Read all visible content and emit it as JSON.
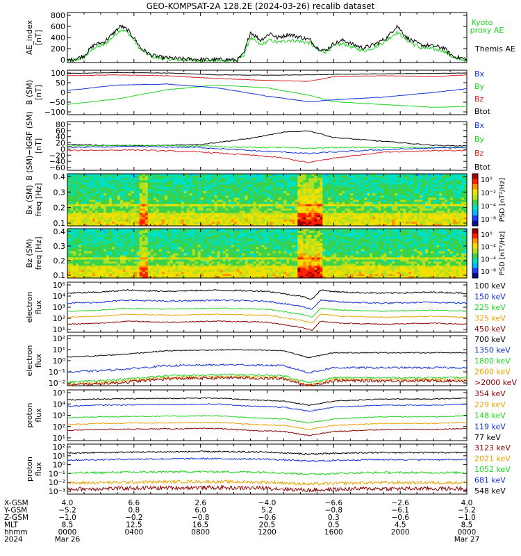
{
  "title": "GEO-KOMPSAT-2A 128.2E (2024-03-26) recalib dataset",
  "colors": {
    "black": "#000000",
    "green": "#1ed41e",
    "red": "#d42020",
    "blue": "#1030d8",
    "orange": "#f0a000",
    "darkred": "#8c0000"
  },
  "chart_data": [
    {
      "type": "line",
      "name": "ae",
      "ylabel": [
        "AE_index",
        "[nT]"
      ],
      "yticks": [
        "800",
        "600",
        "400",
        "200",
        "0"
      ],
      "series": [
        {
          "name": "Kyoto proxy AE",
          "color": "green"
        },
        {
          "name": "Themis AE",
          "color": "black"
        }
      ],
      "legend": [
        "Kyoto",
        "proxy AE",
        "Themis AE"
      ],
      "values": {
        "themis": [
          [
            0,
            40
          ],
          [
            0.5,
            60
          ],
          [
            1,
            120
          ],
          [
            1.6,
            300
          ],
          [
            2.2,
            350
          ],
          [
            2.6,
            450
          ],
          [
            3.2,
            620
          ],
          [
            3.6,
            560
          ],
          [
            4.0,
            420
          ],
          [
            4.4,
            250
          ],
          [
            5.0,
            130
          ],
          [
            5.6,
            90
          ],
          [
            6.4,
            70
          ],
          [
            7.5,
            55
          ],
          [
            8.5,
            50
          ],
          [
            9.5,
            50
          ],
          [
            10.2,
            45
          ],
          [
            10.6,
            150
          ],
          [
            11.0,
            520
          ],
          [
            11.6,
            380
          ],
          [
            12.2,
            500
          ],
          [
            12.6,
            420
          ],
          [
            13.3,
            480
          ],
          [
            14.0,
            430
          ],
          [
            14.6,
            380
          ],
          [
            15.0,
            250
          ],
          [
            15.5,
            200
          ],
          [
            16.0,
            320
          ],
          [
            16.6,
            380
          ],
          [
            17.2,
            300
          ],
          [
            17.8,
            250
          ],
          [
            18.4,
            300
          ],
          [
            19.2,
            420
          ],
          [
            19.8,
            630
          ],
          [
            20.4,
            420
          ],
          [
            21.2,
            300
          ],
          [
            22.0,
            280
          ],
          [
            22.6,
            250
          ],
          [
            23.2,
            100
          ],
          [
            24,
            60
          ]
        ],
        "kyoto": [
          [
            0,
            30
          ],
          [
            0.5,
            45
          ],
          [
            1,
            90
          ],
          [
            1.6,
            250
          ],
          [
            2.2,
            300
          ],
          [
            2.6,
            400
          ],
          [
            3.2,
            560
          ],
          [
            3.6,
            520
          ],
          [
            4.0,
            380
          ],
          [
            4.4,
            220
          ],
          [
            5.0,
            110
          ],
          [
            5.6,
            70
          ],
          [
            6.4,
            50
          ],
          [
            7.5,
            40
          ],
          [
            8.5,
            35
          ],
          [
            9.5,
            35
          ],
          [
            10.2,
            30
          ],
          [
            10.6,
            130
          ],
          [
            11.0,
            420
          ],
          [
            11.6,
            300
          ],
          [
            12.2,
            380
          ],
          [
            12.6,
            340
          ],
          [
            13.3,
            380
          ],
          [
            14.0,
            360
          ],
          [
            14.6,
            330
          ],
          [
            15.0,
            220
          ],
          [
            15.5,
            180
          ],
          [
            16.0,
            280
          ],
          [
            16.6,
            320
          ],
          [
            17.2,
            250
          ],
          [
            17.8,
            200
          ],
          [
            18.4,
            250
          ],
          [
            19.2,
            380
          ],
          [
            19.8,
            520
          ],
          [
            20.4,
            380
          ],
          [
            21.2,
            250
          ],
          [
            22.0,
            230
          ],
          [
            22.6,
            200
          ],
          [
            23.2,
            80
          ],
          [
            24,
            40
          ]
        ]
      }
    },
    {
      "type": "line",
      "name": "b-sm",
      "ylabel": [
        "B (SM)",
        "[nT]"
      ],
      "yticks": [
        "100",
        "50",
        "0",
        "−50",
        "−100"
      ],
      "series": [
        {
          "name": "Bx",
          "color": "blue"
        },
        {
          "name": "By",
          "color": "green"
        },
        {
          "name": "Bz",
          "color": "red"
        },
        {
          "name": "Btot",
          "color": "black"
        }
      ],
      "values": {
        "bx": [
          [
            0,
            15
          ],
          [
            3,
            45
          ],
          [
            6,
            50
          ],
          [
            9,
            30
          ],
          [
            12,
            -15
          ],
          [
            14.5,
            -45
          ],
          [
            16,
            -35
          ],
          [
            19,
            -20
          ],
          [
            22,
            5
          ],
          [
            24,
            25
          ]
        ],
        "by": [
          [
            0,
            -60
          ],
          [
            3,
            -30
          ],
          [
            6,
            20
          ],
          [
            9,
            45
          ],
          [
            12,
            30
          ],
          [
            14.5,
            -10
          ],
          [
            16,
            -45
          ],
          [
            19,
            -60
          ],
          [
            22,
            -75
          ],
          [
            24,
            -70
          ]
        ],
        "bz": [
          [
            0,
            95
          ],
          [
            3,
            100
          ],
          [
            6,
            95
          ],
          [
            9,
            80
          ],
          [
            12,
            70
          ],
          [
            14.5,
            65
          ],
          [
            16,
            90
          ],
          [
            19,
            95
          ],
          [
            22,
            90
          ],
          [
            24,
            100
          ]
        ],
        "btot": [
          [
            0,
            108
          ],
          [
            3,
            112
          ],
          [
            6,
            110
          ],
          [
            9,
            100
          ],
          [
            12,
            98
          ],
          [
            14.5,
            100
          ],
          [
            16,
            102
          ],
          [
            19,
            106
          ],
          [
            22,
            108
          ],
          [
            24,
            110
          ]
        ]
      }
    },
    {
      "type": "line",
      "name": "b-sm-igrf",
      "ylabel": [
        "B (SM)−IGRF (SM)",
        "[nT]"
      ],
      "yticks": [
        "80",
        "60",
        "40",
        "20",
        "0",
        "−20",
        "−40",
        "−60"
      ],
      "series": [
        {
          "name": "Bx",
          "color": "blue"
        },
        {
          "name": "By",
          "color": "green"
        },
        {
          "name": "Bz",
          "color": "red"
        },
        {
          "name": "Btot",
          "color": "black"
        }
      ],
      "values": {
        "btot": [
          [
            0,
            15
          ],
          [
            4,
            10
          ],
          [
            8,
            15
          ],
          [
            11,
            35
          ],
          [
            13,
            55
          ],
          [
            14.5,
            60
          ],
          [
            16,
            38
          ],
          [
            19,
            25
          ],
          [
            22,
            12
          ],
          [
            24,
            10
          ]
        ],
        "bx": [
          [
            0,
            5
          ],
          [
            4,
            8
          ],
          [
            8,
            5
          ],
          [
            11,
            -5
          ],
          [
            13,
            -10
          ],
          [
            14.5,
            -15
          ],
          [
            16,
            -10
          ],
          [
            19,
            -2
          ],
          [
            22,
            3
          ],
          [
            24,
            5
          ]
        ],
        "by": [
          [
            0,
            10
          ],
          [
            4,
            12
          ],
          [
            8,
            10
          ],
          [
            11,
            5
          ],
          [
            13,
            5
          ],
          [
            14.5,
            2
          ],
          [
            16,
            5
          ],
          [
            19,
            5
          ],
          [
            22,
            5
          ],
          [
            24,
            5
          ]
        ],
        "bz": [
          [
            0,
            -5
          ],
          [
            4,
            -3
          ],
          [
            8,
            -10
          ],
          [
            11,
            -20
          ],
          [
            13,
            -30
          ],
          [
            14.5,
            -45
          ],
          [
            16,
            -30
          ],
          [
            19,
            -10
          ],
          [
            22,
            -5
          ],
          [
            24,
            -5
          ]
        ]
      }
    },
    {
      "type": "heatmap",
      "name": "bx-psd",
      "ylabel": [
        "Bx (SM)",
        "freq [Hz]"
      ],
      "yticks": [
        "0.4",
        "0.3",
        "0.2",
        "0.1"
      ],
      "cbar_label": "PSD [nT²/Hz]",
      "cbar_ticks": [
        "10⁰",
        "10⁻²",
        "10⁻⁴",
        "10⁻⁶"
      ]
    },
    {
      "type": "heatmap",
      "name": "bz-psd",
      "ylabel": [
        "Bz (SM)",
        "freq [Hz]"
      ],
      "yticks": [
        "0.4",
        "0.3",
        "0.2",
        "0.1"
      ],
      "cbar_label": "PSD [nT²/Hz]",
      "cbar_ticks": [
        "10⁰",
        "10⁻²",
        "10⁻⁴",
        "10⁻⁶"
      ]
    },
    {
      "type": "line",
      "name": "electron-flux-low",
      "ylabel": [
        "electron",
        "flux"
      ],
      "yticks": [
        "10⁶",
        "10⁴",
        "10³",
        "10²",
        "10¹"
      ],
      "series": [
        {
          "name": "100 keV",
          "color": "black"
        },
        {
          "name": "150 keV",
          "color": "blue"
        },
        {
          "name": "225 keV",
          "color": "green"
        },
        {
          "name": "325 keV",
          "color": "orange"
        },
        {
          "name": "450 keV",
          "color": "darkred"
        }
      ]
    },
    {
      "type": "line",
      "name": "electron-flux-high",
      "ylabel": [
        "electron",
        "flux"
      ],
      "yticks": [
        "10²",
        "10¹",
        "10⁰",
        "10⁻¹",
        "10⁻²"
      ],
      "series": [
        {
          "name": "700 keV",
          "color": "black"
        },
        {
          "name": "1350 keV",
          "color": "blue"
        },
        {
          "name": "1800 keV",
          "color": "green"
        },
        {
          "name": "2600 keV",
          "color": "orange"
        },
        {
          "name": ">2000 keV",
          "color": "darkred"
        }
      ]
    },
    {
      "type": "line",
      "name": "proton-flux-low",
      "ylabel": [
        "proton",
        "flux"
      ],
      "yticks": [
        "10⁵",
        "10⁴",
        "10³",
        "10²",
        "10¹"
      ],
      "series": [
        {
          "name": "354 keV",
          "color": "darkred"
        },
        {
          "name": "229 keV",
          "color": "orange"
        },
        {
          "name": "148 keV",
          "color": "green"
        },
        {
          "name": "119 keV",
          "color": "blue"
        },
        {
          "name": "77 keV",
          "color": "black"
        }
      ]
    },
    {
      "type": "line",
      "name": "proton-flux-high",
      "ylabel": [
        "proton",
        "flux"
      ],
      "yticks": [
        "10²",
        "10¹",
        "10⁰",
        "10⁻¹",
        "10⁻²",
        "10⁻³"
      ],
      "series": [
        {
          "name": "3123 keV",
          "color": "darkred"
        },
        {
          "name": "2021 keV",
          "color": "orange"
        },
        {
          "name": "1052 keV",
          "color": "green"
        },
        {
          "name": "681 keV",
          "color": "blue"
        },
        {
          "name": "548 keV",
          "color": "black"
        }
      ]
    }
  ],
  "xaxis": {
    "row_labels": [
      "X-GSM",
      "Y-GSM",
      "Z-GSM",
      "MLT",
      "hhmm",
      "2024"
    ],
    "columns": [
      [
        "4.0",
        "−5.2",
        "−1.0",
        "8.5",
        "0000",
        "Mar 26"
      ],
      [
        "6.6",
        "0.8",
        "−0.2",
        "12.5",
        "0400",
        ""
      ],
      [
        "2.6",
        "6.0",
        "−0.8",
        "16.5",
        "0800",
        ""
      ],
      [
        "−4.0",
        "5.2",
        "−0.6",
        "20.5",
        "1200",
        ""
      ],
      [
        "−6.6",
        "−0.8",
        "0.3",
        "0.5",
        "1600",
        ""
      ],
      [
        "−2.6",
        "−6.1",
        "−0.6",
        "4.5",
        "2000",
        ""
      ],
      [
        "4.0",
        "−5.2",
        "−1.0",
        "8.5",
        "0000",
        "Mar 27"
      ]
    ]
  }
}
